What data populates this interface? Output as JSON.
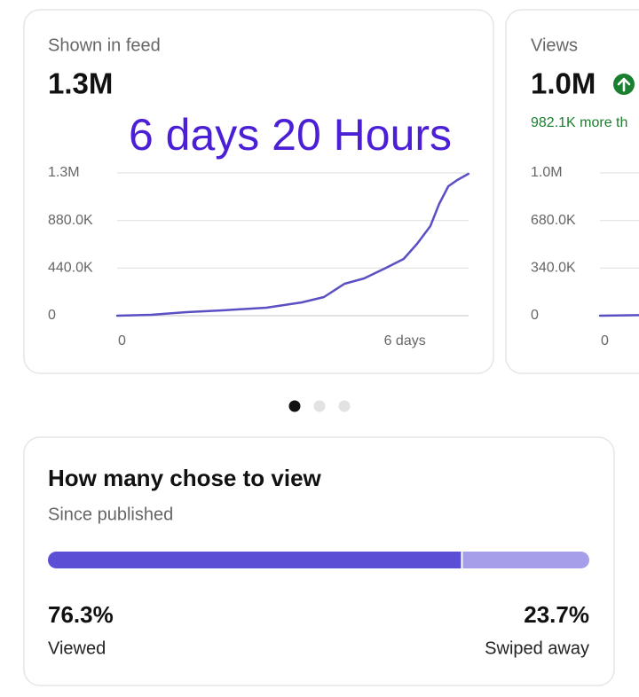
{
  "cards": [
    {
      "title": "Shown in feed",
      "value": "1.3M",
      "annotation": "6 days 20 Hours",
      "chart_data": {
        "type": "line",
        "x": [
          0,
          0.66,
          1.35,
          2.04,
          2.9,
          3.59,
          4.02,
          4.42,
          4.8,
          5.23,
          5.57,
          5.83,
          6.09,
          6.26,
          6.44,
          6.61,
          6.83
        ],
        "series": [
          {
            "color": "#5b4fc4",
            "values": [
              0,
              8000,
              33000,
              49000,
              74000,
              123000,
              172000,
              295000,
              344000,
              443000,
              525000,
              664000,
              828000,
              1033000,
              1197000,
              1254000,
              1312000
            ]
          }
        ],
        "xlim": [
          0,
          6.833
        ],
        "xticks": [
          {
            "value": 0,
            "label": "0"
          },
          {
            "value": 6,
            "label": "6 days"
          }
        ],
        "ylim": [
          0,
          1320000
        ],
        "yticks": [
          {
            "value": 1320000,
            "label": "1.3M"
          },
          {
            "value": 880000,
            "label": "880.0K"
          },
          {
            "value": 440000,
            "label": "440.0K"
          },
          0
        ],
        "grid": true
      }
    },
    {
      "title": "Views",
      "value": "1.0M",
      "subtitle": "982.1K more th",
      "chart_data": {
        "type": "line",
        "x": [
          0,
          0.8
        ],
        "series": [
          {
            "color": "#5b4fc4",
            "values": [
              0,
              4000
            ]
          }
        ],
        "xlim": [
          0,
          6.833
        ],
        "xticks": [
          {
            "value": 0,
            "label": "0"
          }
        ],
        "ylim": [
          0,
          1020000
        ],
        "yticks": [
          {
            "value": 1020000,
            "label": "1.0M"
          },
          {
            "value": 680000,
            "label": "680.0K"
          },
          {
            "value": 340000,
            "label": "340.0K"
          },
          0
        ],
        "grid": true
      }
    }
  ],
  "view_breakdown": {
    "title": "How many chose to view",
    "subtitle": "Since published",
    "chart_data": {
      "type": "bar",
      "orientation": "horizontal",
      "stacked": true,
      "categories": [
        "Viewed",
        "Swiped away"
      ],
      "values": [
        76.3,
        23.7
      ],
      "value_labels": [
        "76.3%",
        "23.7%"
      ],
      "colors": [
        "#5b4fd6",
        "#a69ee8"
      ],
      "xlim": [
        0,
        100
      ]
    }
  }
}
